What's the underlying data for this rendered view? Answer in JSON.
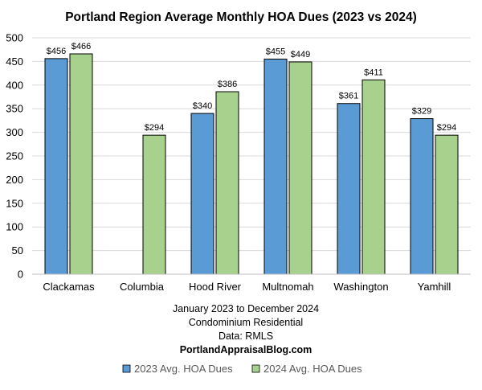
{
  "chart_data": {
    "type": "bar",
    "title": "Portland Region Average Monthly HOA Dues (2023 vs 2024)",
    "categories": [
      "Clackamas",
      "Columbia",
      "Hood River",
      "Multnomah",
      "Washington",
      "Yamhill"
    ],
    "series": [
      {
        "name": "2023 Avg. HOA Dues",
        "values": [
          456,
          null,
          340,
          455,
          361,
          329
        ],
        "labels": [
          "$456",
          "",
          "$340",
          "$455",
          "$361",
          "$329"
        ],
        "color": "#5b9bd5"
      },
      {
        "name": "2024 Avg. HOA Dues",
        "values": [
          466,
          294,
          386,
          449,
          411,
          294
        ],
        "labels": [
          "$466",
          "$294",
          "$386",
          "$449",
          "$411",
          "$294"
        ],
        "color": "#a9d18e"
      }
    ],
    "y_ticks": [
      "0",
      "50",
      "100",
      "150",
      "200",
      "250",
      "300",
      "350",
      "400",
      "450",
      "500"
    ],
    "ylim": [
      0,
      500
    ],
    "grid": true,
    "legend_position": "bottom",
    "notes": [
      "January 2023 to December 2024",
      "Condominium Residential",
      "Data: RMLS",
      "PortlandAppraisalBlog.com"
    ],
    "colors": {
      "grid": "#d9d9d9",
      "axis": "#bfbfbf",
      "bar_outline": "#000000",
      "legend_text": "#595959"
    }
  }
}
